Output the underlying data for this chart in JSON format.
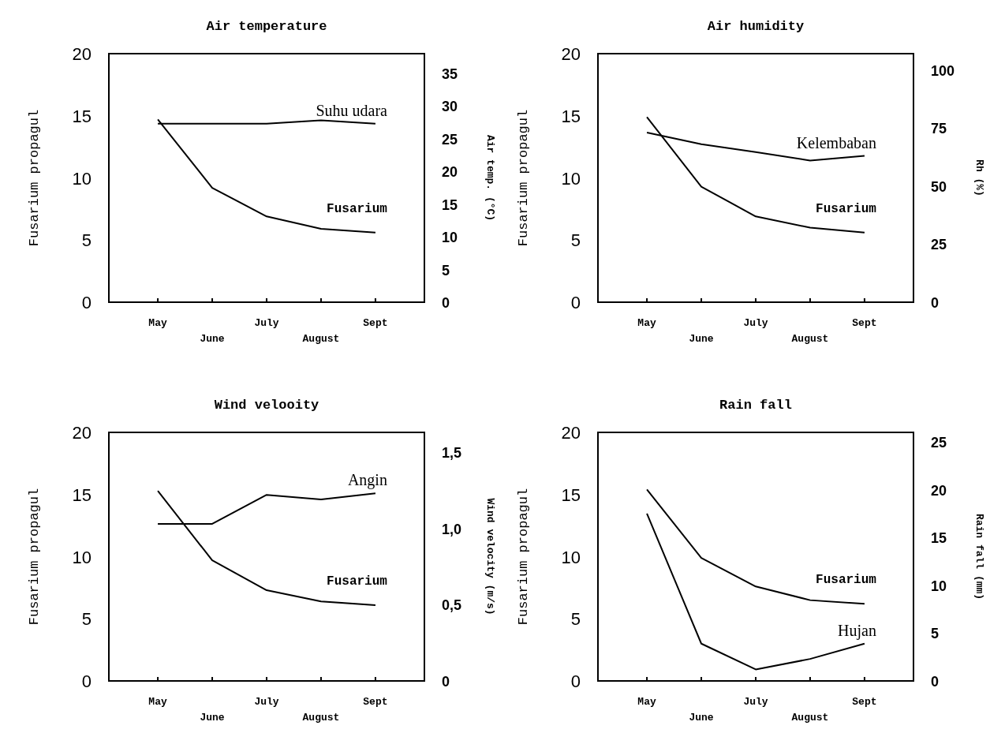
{
  "chart_data": [
    {
      "type": "line",
      "title": "Air temperature",
      "ylabel": "Fusarium propagul",
      "y2label": "Air temp. (°C)",
      "categories": [
        "May",
        "June",
        "July",
        "August",
        "Sept"
      ],
      "ylim": [
        0,
        20
      ],
      "yticks": [
        0,
        5,
        10,
        15,
        20
      ],
      "y2lim": [
        0,
        38
      ],
      "y2ticks": [
        0,
        5,
        10,
        15,
        20,
        25,
        30,
        35
      ],
      "series": [
        {
          "name": "Fusarium",
          "color": "#000000",
          "values": [
            14.7,
            9.2,
            6.9,
            5.9,
            5.6
          ]
        },
        {
          "name": "Suhu udara",
          "color": "#000000",
          "axis": "y2",
          "values": [
            27.3,
            27.3,
            27.3,
            27.8,
            27.3
          ]
        }
      ]
    },
    {
      "type": "line",
      "title": "Air humidity",
      "ylabel": "Fusarium propagul",
      "y2label": "Rh (%)",
      "categories": [
        "May",
        "June",
        "July",
        "August",
        "Sept"
      ],
      "ylim": [
        0,
        20
      ],
      "yticks": [
        0,
        5,
        10,
        15,
        20
      ],
      "y2lim": [
        0,
        107
      ],
      "y2ticks": [
        0,
        25,
        50,
        75,
        100
      ],
      "series": [
        {
          "name": "Fusarium",
          "color": "#000000",
          "values": [
            14.9,
            9.3,
            6.9,
            6.0,
            5.6
          ]
        },
        {
          "name": "Kelembaban",
          "color": "#000000",
          "axis": "y2",
          "values": [
            73,
            68,
            64.6,
            61,
            63
          ]
        }
      ]
    },
    {
      "type": "line",
      "title": "Wind velooity",
      "ylabel": "Fusarium propagul",
      "y2label": "Wind velocity (m/s)",
      "categories": [
        "May",
        "June",
        "July",
        "August",
        "Sept"
      ],
      "ylim": [
        0,
        20
      ],
      "yticks": [
        0,
        5,
        10,
        15,
        20
      ],
      "y2lim": [
        0,
        1.63
      ],
      "y2ticks": [
        0,
        {
          "value": 0.5,
          "label": "0,5"
        },
        {
          "value": 1,
          "label": "1,0"
        },
        {
          "value": 1.5,
          "label": "1,5"
        }
      ],
      "series": [
        {
          "name": "Fusarium",
          "color": "#000000",
          "values": [
            15.3,
            9.7,
            7.3,
            6.4,
            6.1
          ]
        },
        {
          "name": "Angin",
          "color": "#000000",
          "axis": "y2",
          "values": [
            1.03,
            1.03,
            1.22,
            1.19,
            1.23
          ]
        }
      ]
    },
    {
      "type": "line",
      "title": "Rain fall",
      "ylabel": "Fusarium propagul",
      "y2label": "Rain fall (mm)",
      "categories": [
        "May",
        "June",
        "July",
        "August",
        "Sept"
      ],
      "ylim": [
        0,
        20
      ],
      "yticks": [
        0,
        5,
        10,
        15,
        20
      ],
      "y2lim": [
        0,
        26
      ],
      "y2ticks": [
        0,
        5,
        10,
        15,
        20,
        25
      ],
      "series": [
        {
          "name": "Fusarium",
          "color": "#000000",
          "values": [
            15.4,
            9.9,
            7.6,
            6.5,
            6.2
          ]
        },
        {
          "name": "Hujan",
          "color": "#000000",
          "axis": "y2",
          "values": [
            17.5,
            3.9,
            1.2,
            2.3,
            3.9
          ]
        }
      ]
    }
  ]
}
